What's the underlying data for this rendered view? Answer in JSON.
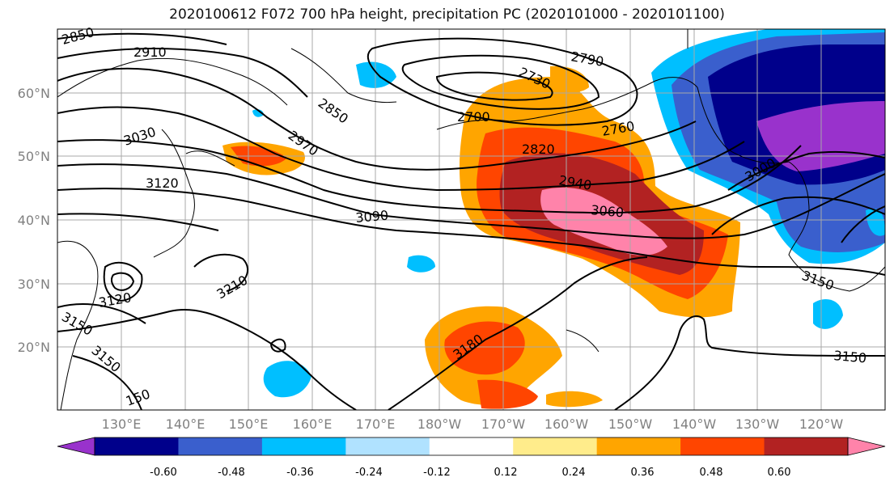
{
  "title": "2020100612 F072 700 hPa height, precipitation PC (2020101000 - 2020101100)",
  "map": {
    "lat_ticks": [
      "60°N",
      "50°N",
      "40°N",
      "30°N",
      "20°N"
    ],
    "lon_ticks": [
      "130°E",
      "140°E",
      "150°E",
      "160°E",
      "170°E",
      "180°W",
      "170°W",
      "160°W",
      "150°W",
      "140°W",
      "130°W",
      "120°W"
    ],
    "contour_labels": [
      "2850",
      "2910",
      "3030",
      "3120",
      "3090",
      "3060",
      "2940",
      "2820",
      "2700",
      "2760",
      "2790",
      "2730",
      "2850",
      "2970",
      "3210",
      "3150",
      "3150",
      "3150",
      "3180",
      "3120",
      "3000",
      "3150",
      "150"
    ]
  },
  "colorbar": {
    "ticks": [
      "-0.60",
      "-0.48",
      "-0.36",
      "-0.24",
      "-0.12",
      "0.12",
      "0.24",
      "0.36",
      "0.48",
      "0.60"
    ],
    "colors": [
      "#9932cc",
      "#00008b",
      "#3a5fcd",
      "#00bfff",
      "#b0e2ff",
      "#ffffff",
      "#ffec8b",
      "#ffa500",
      "#ff4500",
      "#b22222",
      "#ff83aa"
    ]
  }
}
